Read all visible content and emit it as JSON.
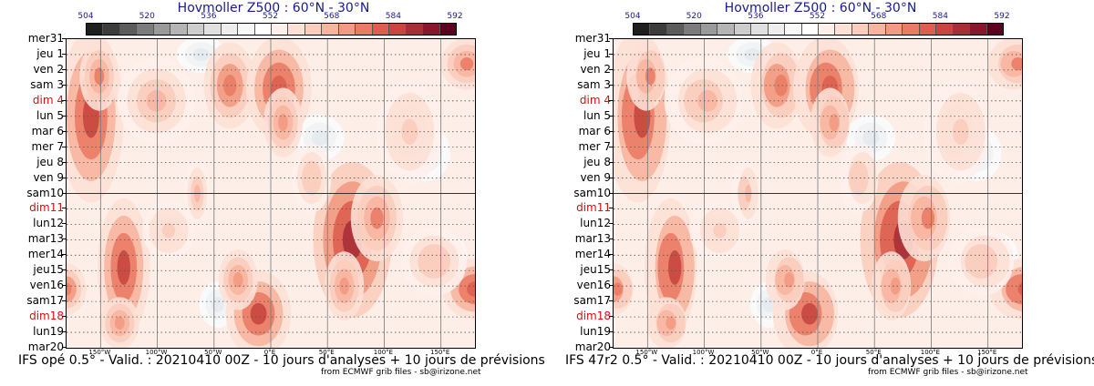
{
  "chart_data": [
    {
      "type": "heatmap",
      "title": "Hovmoller Z500 : 60°N - 30°N",
      "caption": "IFS opé 0.5° - Valid. : 20210410 00Z - 10 jours d'analyses + 10 jours de prévisions",
      "credit": "from ECMWF grib files - sb@irizone.net",
      "colorbar_ticks": [
        "504",
        "520",
        "536",
        "552",
        "568",
        "584",
        "592"
      ],
      "y_labels": [
        "mer31",
        "jeu 1",
        "ven 2",
        "sam 3",
        "dim 4",
        "lun 5",
        "mar 6",
        "mer 7",
        "jeu 8",
        "ven 9",
        "sam10",
        "dim11",
        "lun12",
        "mar13",
        "mer14",
        "jeu15",
        "ven16",
        "sam17",
        "dim18",
        "lun19",
        "mar20"
      ],
      "x_labels": [
        "150°W",
        "100°W",
        "50°W",
        "0°E",
        "50°E",
        "100°E",
        "150°E"
      ],
      "xlim": [
        -180,
        180
      ],
      "analysis_forecast_split": "sam10"
    },
    {
      "type": "heatmap",
      "title": "Hovmoller Z500 : 60°N - 30°N",
      "caption": "IFS 47r2 0.5° - Valid. : 20210410 00Z - 10 jours d'analyses + 10 jours de prévisions",
      "credit": "from ECMWF grib files - sb@irizone.net",
      "colorbar_ticks": [
        "504",
        "520",
        "536",
        "552",
        "568",
        "584",
        "592"
      ],
      "y_labels": [
        "mer31",
        "jeu 1",
        "ven 2",
        "sam 3",
        "dim 4",
        "lun 5",
        "mar 6",
        "mer 7",
        "jeu 8",
        "ven 9",
        "sam10",
        "dim11",
        "lun12",
        "mar13",
        "mer14",
        "jeu15",
        "ven16",
        "sam17",
        "dim18",
        "lun19",
        "mar20"
      ],
      "x_labels": [
        "150°W",
        "100°W",
        "50°W",
        "0°E",
        "50°E",
        "100°E",
        "150°E"
      ],
      "xlim": [
        -180,
        180
      ],
      "analysis_forecast_split": "sam10"
    }
  ],
  "colors": {
    "colorbar": [
      "#1e1e1e",
      "#3c3c3c",
      "#5c5c5c",
      "#7c7c7c",
      "#9a9a9a",
      "#b5b5b5",
      "#cdcdcd",
      "#e0e0e0",
      "#eeeeee",
      "#f8f8f8",
      "#ffffff",
      "#fff0ec",
      "#fde0d6",
      "#fbcdbd",
      "#f7b5a0",
      "#f29a83",
      "#ea7c66",
      "#dd5f4f",
      "#c8463f",
      "#a82f36",
      "#86172c",
      "#5c0020"
    ],
    "title": "#1a1a8c",
    "sunday": "#d01010"
  }
}
